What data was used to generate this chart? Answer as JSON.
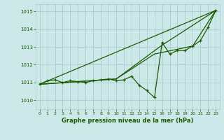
{
  "title": "Graphe pression niveau de la mer (hPa)",
  "background_color": "#cce8e8",
  "grid_color": "#aacccc",
  "line_color": "#1a5c00",
  "xlim": [
    -0.5,
    23.5
  ],
  "ylim": [
    1009.5,
    1015.4
  ],
  "yticks": [
    1010,
    1011,
    1012,
    1013,
    1014,
    1015
  ],
  "xticks": [
    0,
    1,
    2,
    3,
    4,
    5,
    6,
    7,
    8,
    9,
    10,
    11,
    12,
    13,
    14,
    15,
    16,
    17,
    18,
    19,
    20,
    21,
    22,
    23
  ],
  "series1_x": [
    0,
    1,
    2,
    3,
    4,
    5,
    6,
    7,
    8,
    9,
    10,
    11,
    12,
    13,
    14,
    15,
    16,
    17,
    18,
    19,
    20,
    21,
    22,
    23
  ],
  "series1_y": [
    1010.9,
    1011.1,
    1011.15,
    1011.0,
    1011.1,
    1011.05,
    1011.0,
    1011.1,
    1011.15,
    1011.2,
    1011.1,
    1011.15,
    1011.35,
    1010.85,
    1010.55,
    1010.15,
    1013.25,
    1012.6,
    1012.8,
    1012.8,
    1013.05,
    1013.35,
    1014.1,
    1015.05
  ],
  "series2_x": [
    0,
    23
  ],
  "series2_y": [
    1010.9,
    1015.05
  ],
  "series3_x": [
    0,
    10,
    16,
    23
  ],
  "series3_y": [
    1010.9,
    1011.2,
    1013.1,
    1015.05
  ],
  "series4_x": [
    0,
    10,
    15,
    20,
    23
  ],
  "series4_y": [
    1010.9,
    1011.2,
    1012.6,
    1013.05,
    1015.05
  ]
}
